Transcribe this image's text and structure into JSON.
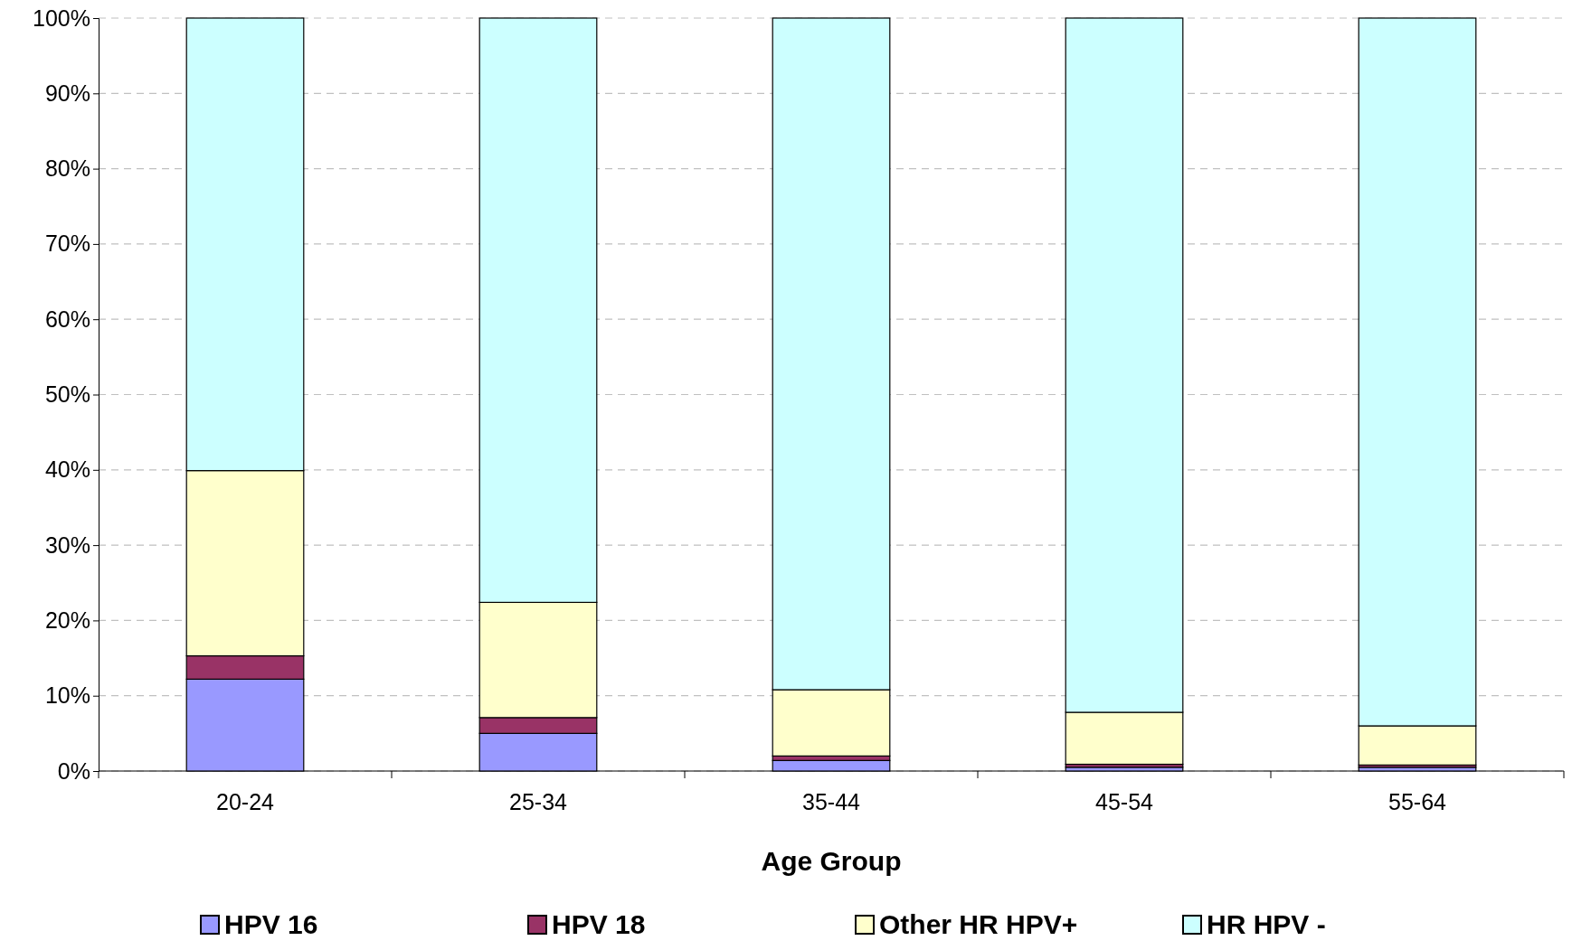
{
  "chart_data": {
    "type": "bar",
    "stacked": true,
    "xlabel": "Age Group",
    "categories": [
      "20-24",
      "25-34",
      "35-44",
      "45-54",
      "55-64"
    ],
    "series": [
      {
        "name": "HPV 16",
        "color": "#9999ff",
        "values": [
          12.2,
          5.0,
          1.4,
          0.5,
          0.5
        ]
      },
      {
        "name": "HPV 18",
        "color": "#993366",
        "values": [
          3.1,
          2.1,
          0.6,
          0.4,
          0.3
        ]
      },
      {
        "name": "Other HR HPV+",
        "color": "#ffffcc",
        "values": [
          24.6,
          15.3,
          8.8,
          6.9,
          5.2
        ]
      },
      {
        "name": "HR HPV -",
        "color": "#ccffff",
        "values": [
          60.1,
          77.6,
          89.2,
          92.2,
          94.0
        ]
      }
    ],
    "ylim": [
      0,
      100
    ],
    "yticks": [
      {
        "value": 0,
        "label": "0%"
      },
      {
        "value": 10,
        "label": "10%"
      },
      {
        "value": 20,
        "label": "20%"
      },
      {
        "value": 30,
        "label": "30%"
      },
      {
        "value": 40,
        "label": "40%"
      },
      {
        "value": 50,
        "label": "50%"
      },
      {
        "value": 60,
        "label": "60%"
      },
      {
        "value": 70,
        "label": "70%"
      },
      {
        "value": 80,
        "label": "80%"
      },
      {
        "value": 90,
        "label": "90%"
      },
      {
        "value": 100,
        "label": "100%"
      }
    ],
    "grid": "y",
    "legend": "bottom"
  }
}
